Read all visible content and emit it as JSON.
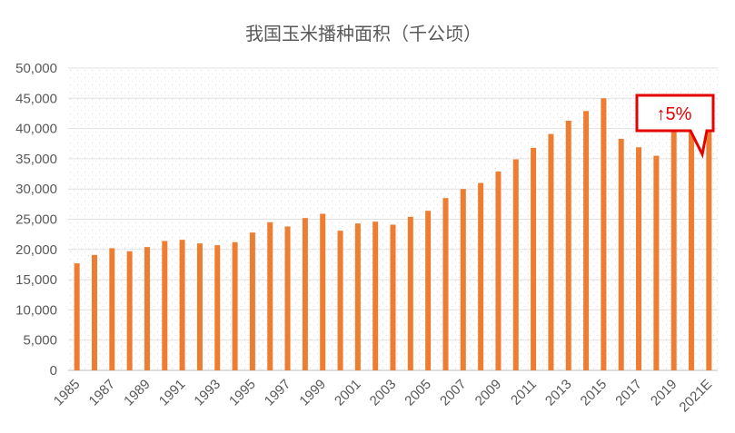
{
  "chart_data": {
    "type": "bar",
    "title": "我国玉米播种面积（千公顷）",
    "xlabel": "",
    "ylabel": "",
    "ylim": [
      0,
      50000
    ],
    "y_ticks": [
      0,
      5000,
      10000,
      15000,
      20000,
      25000,
      30000,
      35000,
      40000,
      45000,
      50000
    ],
    "y_tick_labels": [
      "0",
      "5,000",
      "10,000",
      "15,000",
      "20,000",
      "25,000",
      "30,000",
      "35,000",
      "40,000",
      "45,000",
      "50,000"
    ],
    "categories": [
      "1985",
      "1986",
      "1987",
      "1988",
      "1989",
      "1990",
      "1991",
      "1992",
      "1993",
      "1994",
      "1995",
      "1996",
      "1997",
      "1998",
      "1999",
      "2000",
      "2001",
      "2002",
      "2003",
      "2004",
      "2005",
      "2006",
      "2007",
      "2008",
      "2009",
      "2010",
      "2011",
      "2012",
      "2013",
      "2014",
      "2015",
      "2016",
      "2017",
      "2018",
      "2019",
      "2020",
      "2021E"
    ],
    "x_tick_labels": [
      "1985",
      "1987",
      "1989",
      "1991",
      "1993",
      "1995",
      "1997",
      "1999",
      "2001",
      "2003",
      "2005",
      "2007",
      "2009",
      "2011",
      "2013",
      "2015",
      "2017",
      "2019",
      "2021E"
    ],
    "values": [
      17700,
      19100,
      20200,
      19700,
      20400,
      21400,
      21600,
      21000,
      20700,
      21200,
      22800,
      24500,
      23800,
      25200,
      25900,
      23100,
      24300,
      24600,
      24100,
      25400,
      26400,
      28500,
      30000,
      31000,
      32900,
      34900,
      36800,
      39100,
      41300,
      42900,
      45000,
      38300,
      36900,
      35500,
      41800,
      41300,
      43300
    ],
    "bar_color": "#ed7d31",
    "grid": true,
    "annotation": {
      "text": "↑5%",
      "color": "#e60000",
      "target": "2021E"
    }
  }
}
